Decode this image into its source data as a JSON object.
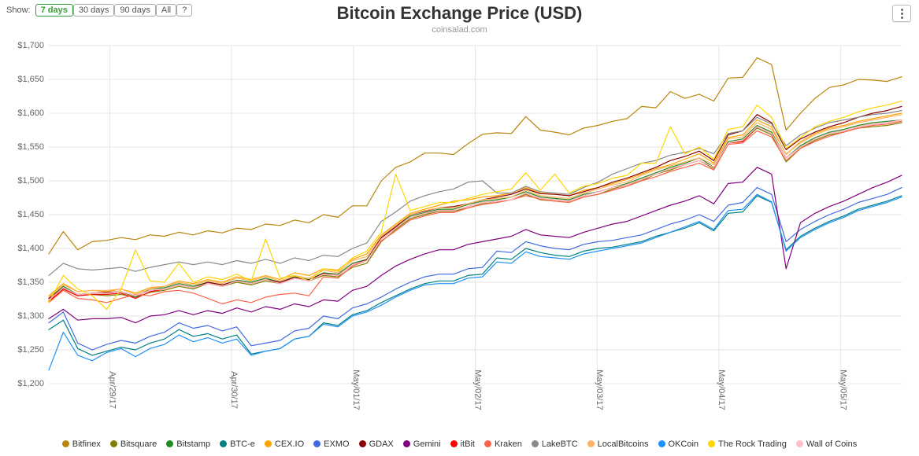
{
  "toolbar": {
    "show_label": "Show:",
    "buttons": [
      {
        "label": "7 days",
        "active": true
      },
      {
        "label": "30 days",
        "active": false
      },
      {
        "label": "90 days",
        "active": false
      },
      {
        "label": "All",
        "active": false
      },
      {
        "label": "?",
        "active": false
      }
    ]
  },
  "chart": {
    "title": "Bitcoin Exchange Price (USD)",
    "subtitle": "coinsalad.com",
    "type": "line",
    "background_color": "#ffffff",
    "grid_color": "#e6e6e6",
    "axis_font_size": 11,
    "title_font_size": 22,
    "x": {
      "ticks": [
        "Apr/29/17",
        "Apr/30/17",
        "May/01/17",
        "May/02/17",
        "May/03/17",
        "May/04/17",
        "May/05/17"
      ],
      "min": 0,
      "max": 7
    },
    "y": {
      "min": 1200,
      "max": 1700,
      "tick_step": 50,
      "label_prefix": "$",
      "label_format": "comma"
    },
    "n_points": 60,
    "line_width": 1.2,
    "series": [
      {
        "name": "Bitfinex",
        "color": "#b8860b",
        "data": [
          1392,
          1425,
          1398,
          1410,
          1412,
          1416,
          1413,
          1420,
          1418,
          1424,
          1420,
          1426,
          1423,
          1430,
          1428,
          1436,
          1434,
          1442,
          1438,
          1450,
          1446,
          1463,
          1463,
          1500,
          1520,
          1528,
          1541,
          1541,
          1539,
          1555,
          1569,
          1571,
          1570,
          1595,
          1575,
          1572,
          1568,
          1578,
          1582,
          1588,
          1592,
          1610,
          1608,
          1632,
          1622,
          1628,
          1618,
          1652,
          1653,
          1682,
          1672,
          1575,
          1600,
          1622,
          1638,
          1642,
          1650,
          1649,
          1647,
          1654
        ]
      },
      {
        "name": "Bitsquare",
        "color": "#808000",
        "data": [
          1320,
          1340,
          1330,
          1332,
          1330,
          1332,
          1328,
          1335,
          1338,
          1344,
          1340,
          1348,
          1344,
          1350,
          1346,
          1352,
          1348,
          1356,
          1352,
          1360,
          1358,
          1372,
          1378,
          1410,
          1428,
          1444,
          1450,
          1455,
          1455,
          1460,
          1466,
          1468,
          1472,
          1480,
          1472,
          1470,
          1468,
          1476,
          1480,
          1488,
          1494,
          1500,
          1510,
          1516,
          1524,
          1530,
          1518,
          1556,
          1558,
          1578,
          1568,
          1528,
          1548,
          1560,
          1568,
          1572,
          1578,
          1580,
          1582,
          1586
        ]
      },
      {
        "name": "Bitstamp",
        "color": "#228b22",
        "data": [
          1326,
          1344,
          1332,
          1334,
          1334,
          1336,
          1328,
          1340,
          1342,
          1348,
          1344,
          1350,
          1346,
          1353,
          1350,
          1356,
          1350,
          1358,
          1354,
          1364,
          1362,
          1378,
          1384,
          1416,
          1432,
          1448,
          1453,
          1458,
          1458,
          1465,
          1470,
          1472,
          1476,
          1484,
          1476,
          1474,
          1472,
          1480,
          1484,
          1490,
          1496,
          1504,
          1512,
          1520,
          1526,
          1534,
          1520,
          1558,
          1562,
          1582,
          1572,
          1534,
          1552,
          1564,
          1572,
          1576,
          1582,
          1586,
          1588,
          1590
        ]
      },
      {
        "name": "BTC-e",
        "color": "#008080",
        "data": [
          1280,
          1294,
          1252,
          1242,
          1248,
          1254,
          1250,
          1260,
          1266,
          1280,
          1270,
          1274,
          1266,
          1272,
          1244,
          1248,
          1252,
          1266,
          1270,
          1290,
          1286,
          1302,
          1308,
          1320,
          1330,
          1340,
          1348,
          1352,
          1352,
          1360,
          1362,
          1386,
          1384,
          1400,
          1394,
          1390,
          1388,
          1396,
          1400,
          1402,
          1406,
          1410,
          1418,
          1424,
          1430,
          1438,
          1426,
          1452,
          1454,
          1478,
          1468,
          1398,
          1418,
          1430,
          1440,
          1448,
          1458,
          1464,
          1470,
          1478
        ]
      },
      {
        "name": "CEX.IO",
        "color": "#ffa500",
        "data": [
          1330,
          1348,
          1336,
          1338,
          1336,
          1340,
          1334,
          1342,
          1344,
          1352,
          1348,
          1354,
          1350,
          1358,
          1354,
          1360,
          1354,
          1364,
          1360,
          1370,
          1368,
          1384,
          1392,
          1420,
          1436,
          1452,
          1458,
          1464,
          1470,
          1472,
          1476,
          1478,
          1482,
          1490,
          1482,
          1480,
          1478,
          1486,
          1490,
          1496,
          1502,
          1510,
          1518,
          1524,
          1532,
          1540,
          1526,
          1564,
          1568,
          1590,
          1580,
          1539,
          1558,
          1570,
          1578,
          1582,
          1588,
          1592,
          1596,
          1600
        ]
      },
      {
        "name": "EXMO",
        "color": "#4169e1",
        "data": [
          1290,
          1306,
          1260,
          1250,
          1258,
          1264,
          1260,
          1270,
          1276,
          1290,
          1282,
          1286,
          1278,
          1284,
          1256,
          1260,
          1264,
          1278,
          1282,
          1300,
          1296,
          1312,
          1318,
          1328,
          1340,
          1350,
          1358,
          1362,
          1362,
          1370,
          1372,
          1396,
          1394,
          1410,
          1404,
          1400,
          1398,
          1406,
          1410,
          1412,
          1416,
          1420,
          1428,
          1436,
          1442,
          1450,
          1440,
          1464,
          1468,
          1490,
          1480,
          1410,
          1428,
          1440,
          1450,
          1458,
          1468,
          1474,
          1480,
          1490
        ]
      },
      {
        "name": "GDAX",
        "color": "#8b0000",
        "data": [
          1326,
          1342,
          1332,
          1334,
          1335,
          1336,
          1330,
          1338,
          1340,
          1346,
          1342,
          1350,
          1346,
          1352,
          1348,
          1354,
          1350,
          1357,
          1353,
          1363,
          1360,
          1376,
          1383,
          1416,
          1432,
          1450,
          1455,
          1460,
          1462,
          1466,
          1472,
          1476,
          1480,
          1488,
          1481,
          1480,
          1478,
          1484,
          1490,
          1498,
          1504,
          1512,
          1520,
          1530,
          1536,
          1544,
          1530,
          1568,
          1574,
          1598,
          1586,
          1546,
          1562,
          1572,
          1580,
          1586,
          1594,
          1600,
          1604,
          1610
        ]
      },
      {
        "name": "Gemini",
        "color": "#800080",
        "data": [
          1296,
          1310,
          1294,
          1296,
          1296,
          1298,
          1290,
          1300,
          1302,
          1308,
          1302,
          1308,
          1304,
          1312,
          1306,
          1314,
          1310,
          1318,
          1314,
          1324,
          1322,
          1338,
          1344,
          1360,
          1374,
          1384,
          1392,
          1398,
          1398,
          1406,
          1410,
          1414,
          1418,
          1428,
          1420,
          1418,
          1416,
          1424,
          1430,
          1436,
          1440,
          1448,
          1456,
          1464,
          1470,
          1478,
          1466,
          1496,
          1498,
          1520,
          1510,
          1370,
          1438,
          1452,
          1462,
          1470,
          1480,
          1490,
          1498,
          1508
        ]
      },
      {
        "name": "itBit",
        "color": "#ff0000",
        "data": [
          1322,
          1340,
          1330,
          1332,
          1332,
          1334,
          1326,
          1336,
          1340,
          1346,
          1342,
          1348,
          1344,
          1352,
          1348,
          1354,
          1348,
          1356,
          1352,
          1362,
          1360,
          1376,
          1382,
          1414,
          1430,
          1446,
          1452,
          1456,
          1456,
          1462,
          1468,
          1470,
          1472,
          1482,
          1474,
          1472,
          1470,
          1478,
          1484,
          1490,
          1494,
          1502,
          1510,
          1518,
          1524,
          1530,
          1520,
          1556,
          1558,
          1580,
          1570,
          1534,
          1550,
          1562,
          1570,
          1574,
          1580,
          1584,
          1586,
          1590
        ]
      },
      {
        "name": "Kraken",
        "color": "#ff6347",
        "data": [
          1320,
          1338,
          1326,
          1324,
          1320,
          1326,
          1332,
          1330,
          1336,
          1338,
          1334,
          1326,
          1318,
          1324,
          1320,
          1328,
          1332,
          1334,
          1330,
          1358,
          1356,
          1374,
          1382,
          1411,
          1426,
          1442,
          1448,
          1453,
          1453,
          1460,
          1465,
          1468,
          1472,
          1478,
          1473,
          1470,
          1468,
          1476,
          1480,
          1486,
          1492,
          1500,
          1506,
          1514,
          1520,
          1526,
          1516,
          1554,
          1556,
          1574,
          1565,
          1530,
          1548,
          1558,
          1566,
          1572,
          1578,
          1582,
          1584,
          1588
        ]
      },
      {
        "name": "LakeBTC",
        "color": "#888888",
        "data": [
          1360,
          1378,
          1370,
          1368,
          1370,
          1372,
          1366,
          1372,
          1376,
          1380,
          1376,
          1380,
          1376,
          1382,
          1378,
          1384,
          1378,
          1386,
          1382,
          1390,
          1388,
          1400,
          1408,
          1440,
          1454,
          1470,
          1478,
          1484,
          1488,
          1498,
          1500,
          1482,
          1482,
          1492,
          1484,
          1482,
          1480,
          1490,
          1498,
          1510,
          1518,
          1526,
          1530,
          1538,
          1542,
          1548,
          1540,
          1570,
          1574,
          1594,
          1584,
          1552,
          1568,
          1578,
          1586,
          1590,
          1594,
          1598,
          1600,
          1604
        ]
      },
      {
        "name": "LocalBitcoins",
        "color": "#ffb366",
        "data": [
          1328,
          1346,
          1336,
          1338,
          1338,
          1340,
          1332,
          1340,
          1344,
          1350,
          1346,
          1352,
          1348,
          1356,
          1352,
          1358,
          1352,
          1360,
          1356,
          1368,
          1364,
          1382,
          1388,
          1418,
          1434,
          1450,
          1456,
          1460,
          1460,
          1466,
          1472,
          1474,
          1476,
          1486,
          1478,
          1476,
          1474,
          1482,
          1488,
          1494,
          1498,
          1508,
          1516,
          1522,
          1528,
          1534,
          1524,
          1562,
          1565,
          1586,
          1576,
          1540,
          1556,
          1568,
          1576,
          1580,
          1586,
          1590,
          1594,
          1598
        ]
      },
      {
        "name": "OKCoin",
        "color": "#1e90ff",
        "data": [
          1220,
          1276,
          1242,
          1234,
          1246,
          1252,
          1240,
          1252,
          1258,
          1272,
          1262,
          1268,
          1260,
          1266,
          1242,
          1248,
          1252,
          1266,
          1270,
          1288,
          1284,
          1300,
          1306,
          1316,
          1328,
          1338,
          1346,
          1348,
          1348,
          1356,
          1358,
          1380,
          1378,
          1395,
          1388,
          1386,
          1384,
          1392,
          1396,
          1400,
          1404,
          1408,
          1416,
          1424,
          1432,
          1440,
          1428,
          1456,
          1458,
          1480,
          1469,
          1396,
          1416,
          1428,
          1438,
          1446,
          1456,
          1462,
          1468,
          1476
        ]
      },
      {
        "name": "The Rock Trading",
        "color": "#ffd700",
        "data": [
          1320,
          1360,
          1340,
          1330,
          1310,
          1340,
          1398,
          1352,
          1350,
          1378,
          1350,
          1358,
          1354,
          1362,
          1352,
          1414,
          1356,
          1360,
          1352,
          1370,
          1366,
          1386,
          1396,
          1424,
          1510,
          1456,
          1462,
          1468,
          1468,
          1474,
          1480,
          1484,
          1488,
          1512,
          1486,
          1510,
          1482,
          1492,
          1496,
          1504,
          1508,
          1526,
          1526,
          1580,
          1540,
          1550,
          1532,
          1576,
          1580,
          1612,
          1594,
          1548,
          1564,
          1580,
          1588,
          1594,
          1602,
          1608,
          1612,
          1618
        ]
      },
      {
        "name": "Wall of Coins",
        "color": "#ffc0cb",
        "data": [
          1324,
          1342,
          1332,
          1334,
          1334,
          1336,
          1330,
          1338,
          1340,
          1346,
          1342,
          1348,
          1344,
          1352,
          1348,
          1354,
          1348,
          1356,
          1352,
          1362,
          1360,
          1376,
          1382,
          1414,
          1430,
          1446,
          1452,
          1456,
          1456,
          1462,
          1468,
          1470,
          1472,
          1482,
          1474,
          1472,
          1470,
          1478,
          1484,
          1490,
          1494,
          1502,
          1510,
          1518,
          1524,
          1530,
          1520,
          1556,
          1560,
          1580,
          1570,
          1534,
          1550,
          1562,
          1570,
          1574,
          1580,
          1584,
          1586,
          1590
        ]
      }
    ]
  }
}
